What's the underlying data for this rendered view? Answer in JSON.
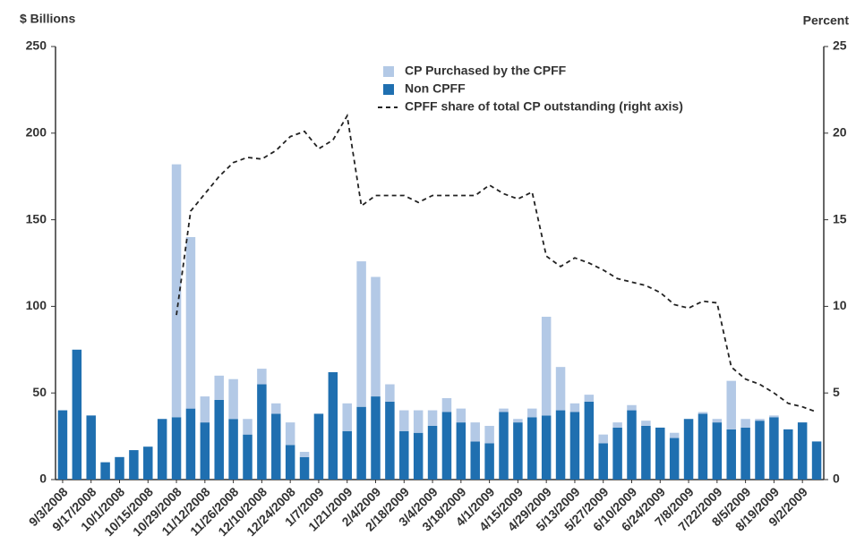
{
  "chart_data": {
    "type": "bar",
    "stacked": true,
    "y_label": "$ Billions",
    "y2_label": "Percent",
    "categories": [
      "9/3/2008",
      null,
      "9/17/2008",
      null,
      "10/1/2008",
      null,
      "10/15/2008",
      null,
      "10/29/2008",
      null,
      "11/12/2008",
      null,
      "11/26/2008",
      null,
      "12/10/2008",
      null,
      "12/24/2008",
      null,
      "1/7/2009",
      null,
      "1/21/2009",
      null,
      "2/4/2009",
      null,
      "2/18/2009",
      null,
      "3/4/2009",
      null,
      "3/18/2009",
      null,
      "4/1/2009",
      null,
      "4/15/2009",
      null,
      "4/29/2009",
      null,
      "5/13/2009",
      null,
      "5/27/2009",
      null,
      "6/10/2009",
      null,
      "6/24/2009",
      null,
      "7/8/2009",
      null,
      "7/22/2009",
      null,
      "8/5/2009",
      null,
      "8/19/2009",
      null,
      "9/2/2009",
      null
    ],
    "series": [
      {
        "name": "CP Purchased by the CPFF",
        "color": "#b3c9e6",
        "values": [
          0,
          0,
          0,
          0,
          0,
          0,
          0,
          0,
          146,
          99,
          15,
          14,
          23,
          9,
          9,
          6,
          13,
          3,
          0,
          0,
          16,
          84,
          69,
          10,
          12,
          13,
          9,
          8,
          8,
          11,
          10,
          2,
          2,
          5,
          57,
          25,
          5,
          4,
          5,
          3,
          3,
          3,
          0,
          3,
          0,
          1,
          2,
          28,
          5,
          1,
          1,
          0,
          0,
          0
        ]
      },
      {
        "name": "Non CPFF",
        "color": "#1f6fb0",
        "values": [
          40,
          75,
          37,
          10,
          13,
          17,
          19,
          35,
          36,
          41,
          33,
          46,
          35,
          26,
          55,
          38,
          20,
          13,
          38,
          62,
          28,
          42,
          48,
          45,
          28,
          27,
          31,
          39,
          33,
          22,
          21,
          39,
          33,
          36,
          37,
          40,
          39,
          45,
          21,
          30,
          40,
          31,
          30,
          24,
          35,
          38,
          33,
          29,
          30,
          34,
          36,
          29,
          33,
          22
        ]
      },
      {
        "name": "CPFF share of total CP outstanding (right axis)",
        "type": "line",
        "axis": "y2",
        "color": "#222222",
        "dashed": true,
        "values": [
          null,
          null,
          null,
          null,
          null,
          null,
          null,
          null,
          9.5,
          15.5,
          16.5,
          17.5,
          18.3,
          18.6,
          18.5,
          19,
          19.8,
          20.1,
          19.1,
          19.6,
          21,
          15.8,
          16.4,
          16.4,
          16.4,
          16,
          16.4,
          16.4,
          16.4,
          16.4,
          17,
          16.5,
          16.2,
          16.6,
          12.9,
          12.3,
          12.8,
          12.5,
          12.1,
          11.6,
          11.4,
          11.2,
          10.8,
          10.1,
          9.9,
          10.3,
          10.2,
          6.5,
          5.8,
          5.5,
          5,
          4.4,
          4.2,
          3.9
        ]
      }
    ],
    "ylim": [
      0,
      250
    ],
    "yticks": [
      0,
      50,
      100,
      150,
      200,
      250
    ],
    "y2lim": [
      0,
      25
    ],
    "y2ticks": [
      0,
      5,
      10,
      15,
      20,
      25
    ],
    "grid": false
  }
}
